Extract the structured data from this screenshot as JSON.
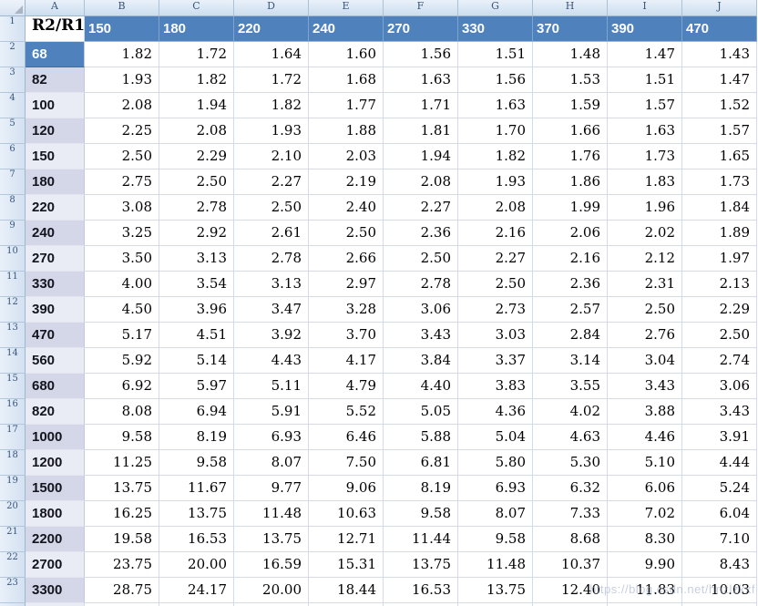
{
  "sheet": {
    "column_letters": [
      "A",
      "B",
      "C",
      "D",
      "E",
      "F",
      "G",
      "H",
      "I",
      "J"
    ],
    "row_numbers": [
      "1",
      "2",
      "3",
      "4",
      "5",
      "6",
      "7",
      "8",
      "9",
      "10",
      "11",
      "12",
      "13",
      "14",
      "15",
      "16",
      "17",
      "18",
      "19",
      "20",
      "21",
      "22",
      "23"
    ],
    "header_row": {
      "label": "R2/R1",
      "values": [
        "150",
        "180",
        "220",
        "240",
        "270",
        "330",
        "370",
        "390",
        "470"
      ]
    },
    "data_rows": [
      {
        "label": "68",
        "values": [
          "1.82",
          "1.72",
          "1.64",
          "1.60",
          "1.56",
          "1.51",
          "1.48",
          "1.47",
          "1.43"
        ]
      },
      {
        "label": "82",
        "values": [
          "1.93",
          "1.82",
          "1.72",
          "1.68",
          "1.63",
          "1.56",
          "1.53",
          "1.51",
          "1.47"
        ]
      },
      {
        "label": "100",
        "values": [
          "2.08",
          "1.94",
          "1.82",
          "1.77",
          "1.71",
          "1.63",
          "1.59",
          "1.57",
          "1.52"
        ]
      },
      {
        "label": "120",
        "values": [
          "2.25",
          "2.08",
          "1.93",
          "1.88",
          "1.81",
          "1.70",
          "1.66",
          "1.63",
          "1.57"
        ]
      },
      {
        "label": "150",
        "values": [
          "2.50",
          "2.29",
          "2.10",
          "2.03",
          "1.94",
          "1.82",
          "1.76",
          "1.73",
          "1.65"
        ]
      },
      {
        "label": "180",
        "values": [
          "2.75",
          "2.50",
          "2.27",
          "2.19",
          "2.08",
          "1.93",
          "1.86",
          "1.83",
          "1.73"
        ]
      },
      {
        "label": "220",
        "values": [
          "3.08",
          "2.78",
          "2.50",
          "2.40",
          "2.27",
          "2.08",
          "1.99",
          "1.96",
          "1.84"
        ]
      },
      {
        "label": "240",
        "values": [
          "3.25",
          "2.92",
          "2.61",
          "2.50",
          "2.36",
          "2.16",
          "2.06",
          "2.02",
          "1.89"
        ]
      },
      {
        "label": "270",
        "values": [
          "3.50",
          "3.13",
          "2.78",
          "2.66",
          "2.50",
          "2.27",
          "2.16",
          "2.12",
          "1.97"
        ]
      },
      {
        "label": "330",
        "values": [
          "4.00",
          "3.54",
          "3.13",
          "2.97",
          "2.78",
          "2.50",
          "2.36",
          "2.31",
          "2.13"
        ]
      },
      {
        "label": "390",
        "values": [
          "4.50",
          "3.96",
          "3.47",
          "3.28",
          "3.06",
          "2.73",
          "2.57",
          "2.50",
          "2.29"
        ]
      },
      {
        "label": "470",
        "values": [
          "5.17",
          "4.51",
          "3.92",
          "3.70",
          "3.43",
          "3.03",
          "2.84",
          "2.76",
          "2.50"
        ]
      },
      {
        "label": "560",
        "values": [
          "5.92",
          "5.14",
          "4.43",
          "4.17",
          "3.84",
          "3.37",
          "3.14",
          "3.04",
          "2.74"
        ]
      },
      {
        "label": "680",
        "values": [
          "6.92",
          "5.97",
          "5.11",
          "4.79",
          "4.40",
          "3.83",
          "3.55",
          "3.43",
          "3.06"
        ]
      },
      {
        "label": "820",
        "values": [
          "8.08",
          "6.94",
          "5.91",
          "5.52",
          "5.05",
          "4.36",
          "4.02",
          "3.88",
          "3.43"
        ]
      },
      {
        "label": "1000",
        "values": [
          "9.58",
          "8.19",
          "6.93",
          "6.46",
          "5.88",
          "5.04",
          "4.63",
          "4.46",
          "3.91"
        ]
      },
      {
        "label": "1200",
        "values": [
          "11.25",
          "9.58",
          "8.07",
          "7.50",
          "6.81",
          "5.80",
          "5.30",
          "5.10",
          "4.44"
        ]
      },
      {
        "label": "1500",
        "values": [
          "13.75",
          "11.67",
          "9.77",
          "9.06",
          "8.19",
          "6.93",
          "6.32",
          "6.06",
          "5.24"
        ]
      },
      {
        "label": "1800",
        "values": [
          "16.25",
          "13.75",
          "11.48",
          "10.63",
          "9.58",
          "8.07",
          "7.33",
          "7.02",
          "6.04"
        ]
      },
      {
        "label": "2200",
        "values": [
          "19.58",
          "16.53",
          "13.75",
          "12.71",
          "11.44",
          "9.58",
          "8.68",
          "8.30",
          "7.10"
        ]
      },
      {
        "label": "2700",
        "values": [
          "23.75",
          "20.00",
          "16.59",
          "15.31",
          "13.75",
          "11.48",
          "10.37",
          "9.90",
          "8.43"
        ]
      },
      {
        "label": "3300",
        "values": [
          "28.75",
          "24.17",
          "20.00",
          "18.44",
          "16.53",
          "13.75",
          "12.40",
          "11.83",
          "10.03"
        ]
      }
    ],
    "watermark": "https://blog.csdn.net/hnzlzkxf",
    "colors": {
      "header_fill": "#4f81bd",
      "selected_fill": "#4f81bd",
      "label_dark": "#d3d7e7",
      "label_light": "#e9ecf4",
      "gridline": "#d4dbe8"
    }
  }
}
